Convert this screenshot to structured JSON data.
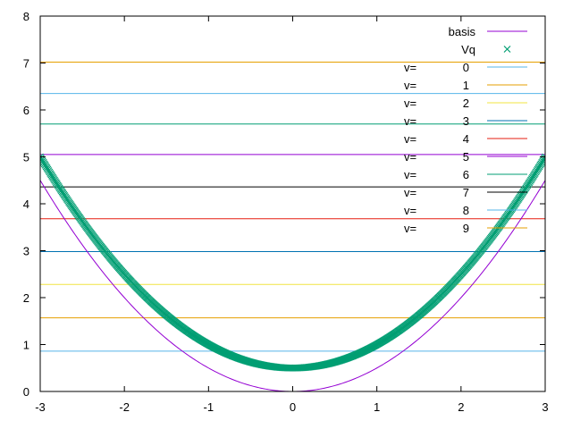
{
  "chart_data": {
    "type": "line",
    "title": "",
    "xlabel": "",
    "ylabel": "",
    "xlim": [
      -3,
      3
    ],
    "ylim": [
      0,
      8
    ],
    "xticks": [
      "-3",
      "-2",
      "-1",
      "0",
      "1",
      "2",
      "3"
    ],
    "yticks": [
      "0",
      "1",
      "2",
      "3",
      "4",
      "5",
      "6",
      "7",
      "8"
    ],
    "grid": false,
    "legend_position": "top-right",
    "series": [
      {
        "name": "basis",
        "kind": "curve",
        "formula": "0.5*x^2",
        "color": "#9400d3"
      },
      {
        "name": "Vq",
        "kind": "scatter",
        "formula": "0.5*x^2 + 0.5",
        "marker": "x",
        "color": "#009e73"
      }
    ],
    "levels": [
      {
        "label": "v=",
        "index": "0",
        "y": 0.86,
        "color": "#56b4e9"
      },
      {
        "label": "v=",
        "index": "1",
        "y": 1.57,
        "color": "#e69f00"
      },
      {
        "label": "v=",
        "index": "2",
        "y": 2.28,
        "color": "#f0e442"
      },
      {
        "label": "v=",
        "index": "3",
        "y": 2.98,
        "color": "#0072b2"
      },
      {
        "label": "v=",
        "index": "4",
        "y": 3.68,
        "color": "#e51e10"
      },
      {
        "label": "v=",
        "index": "5",
        "y": 5.05,
        "color": "#9400d3"
      },
      {
        "label": "v=",
        "index": "6",
        "y": 5.7,
        "color": "#009e73"
      },
      {
        "label": "v=",
        "index": "7",
        "y": 4.36,
        "color": "#000000"
      },
      {
        "label": "v=",
        "index": "8",
        "y": 6.35,
        "color": "#56b4e9"
      },
      {
        "label": "v=",
        "index": "9",
        "y": 7.02,
        "color": "#e69f00"
      }
    ]
  }
}
